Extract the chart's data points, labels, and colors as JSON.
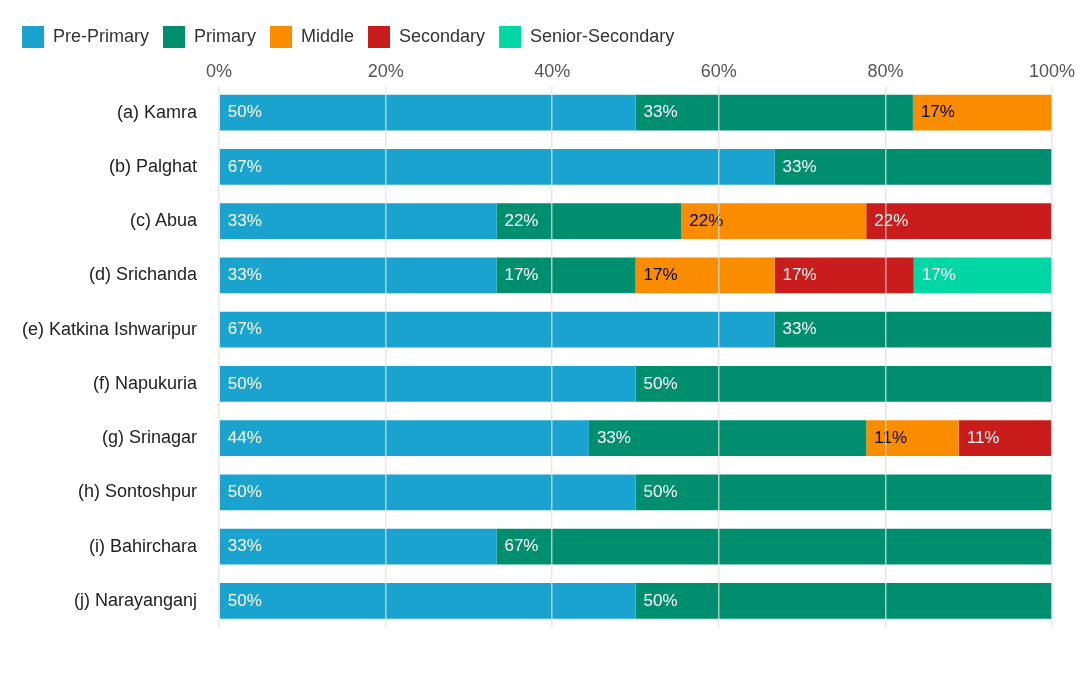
{
  "chart_data": {
    "type": "bar",
    "orientation": "horizontal",
    "stacked": true,
    "legend": "top left",
    "grid": "x",
    "categories": [
      "(a) Kamra",
      "(b) Palghat",
      "(c) Abua",
      "(d) Srichanda",
      "(e) Katkina Ishwaripur",
      "(f) Napukuria",
      "(g) Srinagar",
      "(h) Sontoshpur",
      "(i) Bahirchara",
      "(j) Narayanganj"
    ],
    "xlim": [
      0,
      100
    ],
    "xticks": [
      {
        "value": 0,
        "label": "0%"
      },
      {
        "value": 20,
        "label": "20%"
      },
      {
        "value": 40,
        "label": "40%"
      },
      {
        "value": 60,
        "label": "60%"
      },
      {
        "value": 80,
        "label": "80%"
      },
      {
        "value": 100,
        "label": "100%"
      }
    ],
    "series": [
      {
        "name": "Pre-Primary",
        "color": "#1ba3d0",
        "values": [
          50,
          66.7,
          33.3,
          33.3,
          66.7,
          50,
          44.4,
          50,
          33.3,
          50
        ],
        "value_labels": [
          "50%",
          "67%",
          "33%",
          "33%",
          "67%",
          "50%",
          "44%",
          "50%",
          "33%",
          "50%"
        ]
      },
      {
        "name": "Primary",
        "color": "#008f6e",
        "values": [
          33.3,
          33.3,
          22.2,
          16.7,
          33.3,
          50,
          33.3,
          50,
          66.7,
          50
        ],
        "value_labels": [
          "33%",
          "33%",
          "22%",
          "17%",
          "33%",
          "50%",
          "33%",
          "50%",
          "67%",
          "50%"
        ]
      },
      {
        "name": "Middle",
        "color": "#fa8c00",
        "values": [
          16.7,
          null,
          22.2,
          16.7,
          null,
          null,
          11.1,
          null,
          null,
          null
        ],
        "value_labels": [
          "17%",
          null,
          "22%",
          "17%",
          null,
          null,
          "11%",
          null,
          null,
          null
        ]
      },
      {
        "name": "Secondary",
        "color": "#c91d1d",
        "values": [
          null,
          null,
          22.2,
          16.7,
          null,
          null,
          11.1,
          null,
          null,
          null
        ],
        "value_labels": [
          null,
          null,
          "22%",
          "17%",
          null,
          null,
          "11%",
          null,
          null,
          null
        ]
      },
      {
        "name": "Senior-Secondary",
        "color": "#00d7a5",
        "values": [
          null,
          null,
          null,
          16.6,
          null,
          null,
          null,
          null,
          null,
          null
        ],
        "value_labels": [
          null,
          null,
          null,
          "17%",
          null,
          null,
          null,
          null,
          null,
          null
        ]
      }
    ]
  }
}
